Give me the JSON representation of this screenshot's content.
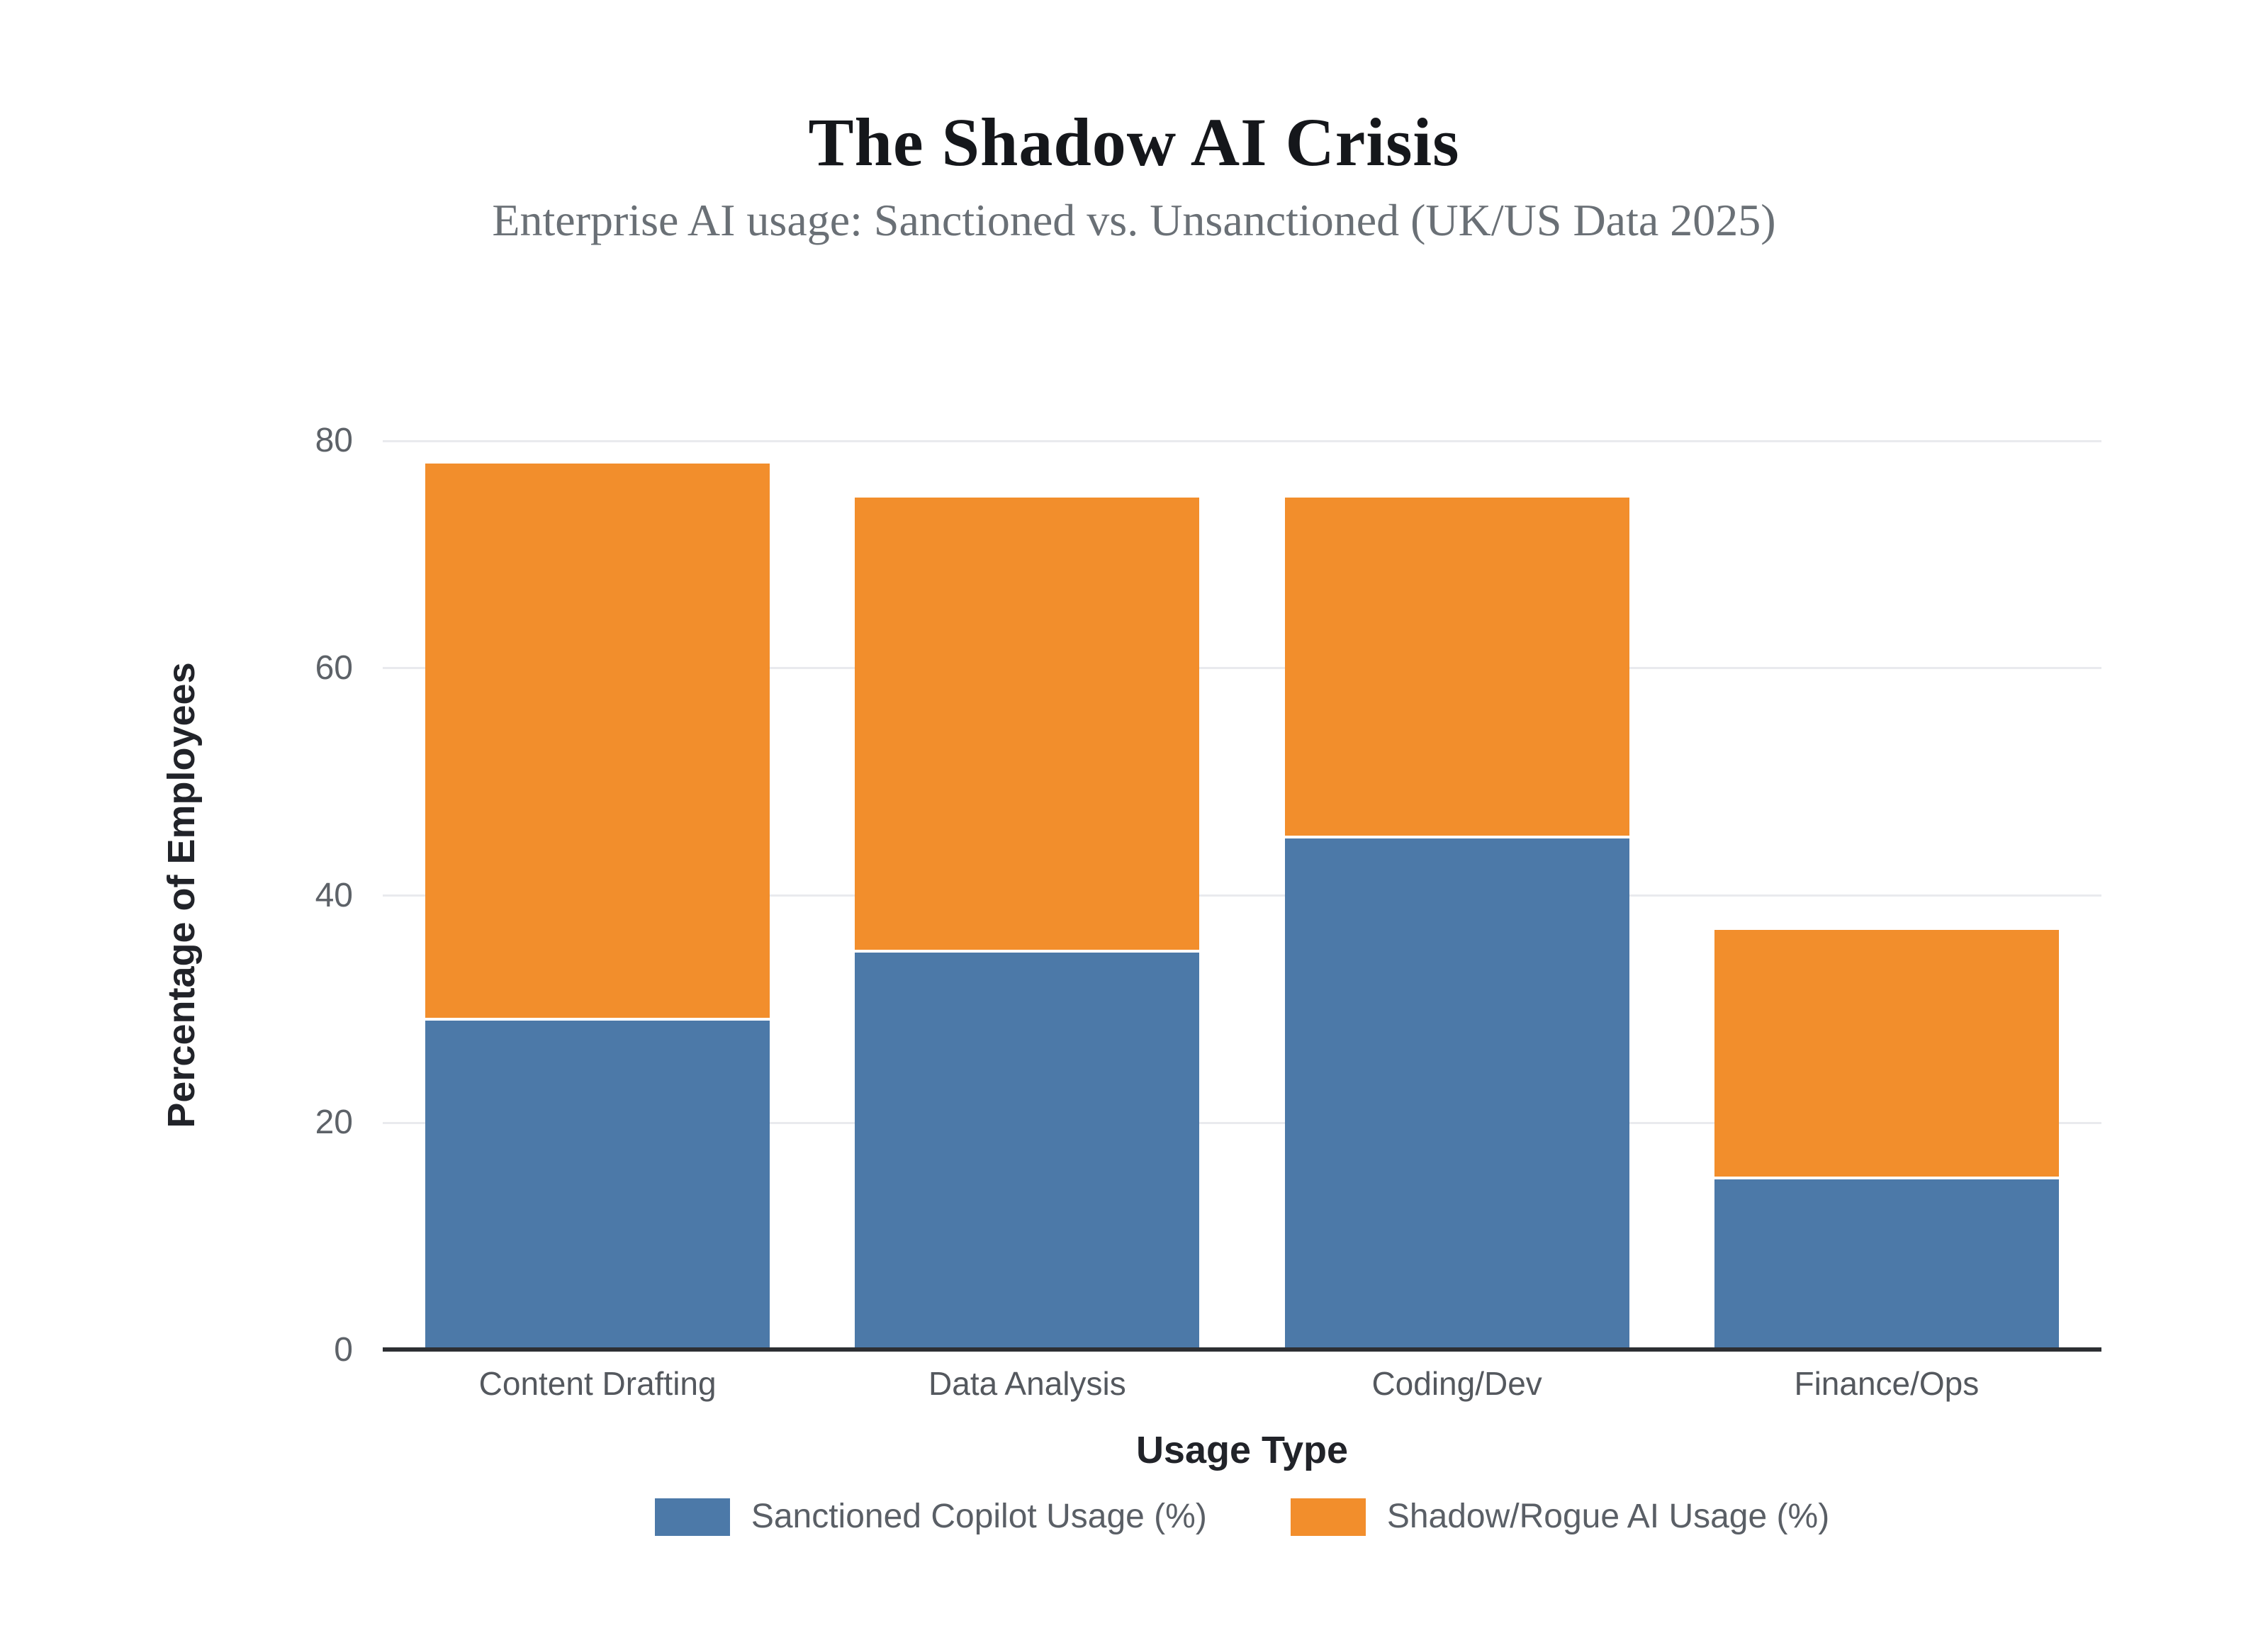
{
  "chart_data": {
    "type": "bar",
    "stacked": true,
    "title": "The Shadow AI Crisis",
    "subtitle": "Enterprise AI usage: Sanctioned vs. Unsanctioned (UK/US Data 2025)",
    "xlabel": "Usage Type",
    "ylabel": "Percentage of Employees",
    "categories": [
      "Content Drafting",
      "Data Analysis",
      "Coding/Dev",
      "Finance/Ops"
    ],
    "series": [
      {
        "name": "Sanctioned Copilot Usage (%)",
        "color": "#4C79A8",
        "values": [
          29,
          35,
          45,
          15
        ]
      },
      {
        "name": "Shadow/Rogue AI Usage (%)",
        "color": "#F28E2C",
        "values": [
          49,
          40,
          30,
          22
        ]
      }
    ],
    "stack_totals": [
      78,
      75,
      75,
      37
    ],
    "ylim": [
      0,
      80
    ],
    "yticks": [
      0,
      20,
      40,
      60,
      80
    ],
    "grid": true,
    "legend_position": "bottom"
  },
  "theme": {
    "background": "#FFFFFF",
    "title_color": "#15171B",
    "subtitle_color": "#6A7076",
    "axis_title_color": "#212329",
    "tick_label_color": "#5D6268",
    "category_label_color": "#54585E",
    "legend_label_color": "#5A5F66",
    "gridline_color": "#E9EAEE",
    "axis_line_color": "#2D2F33"
  }
}
